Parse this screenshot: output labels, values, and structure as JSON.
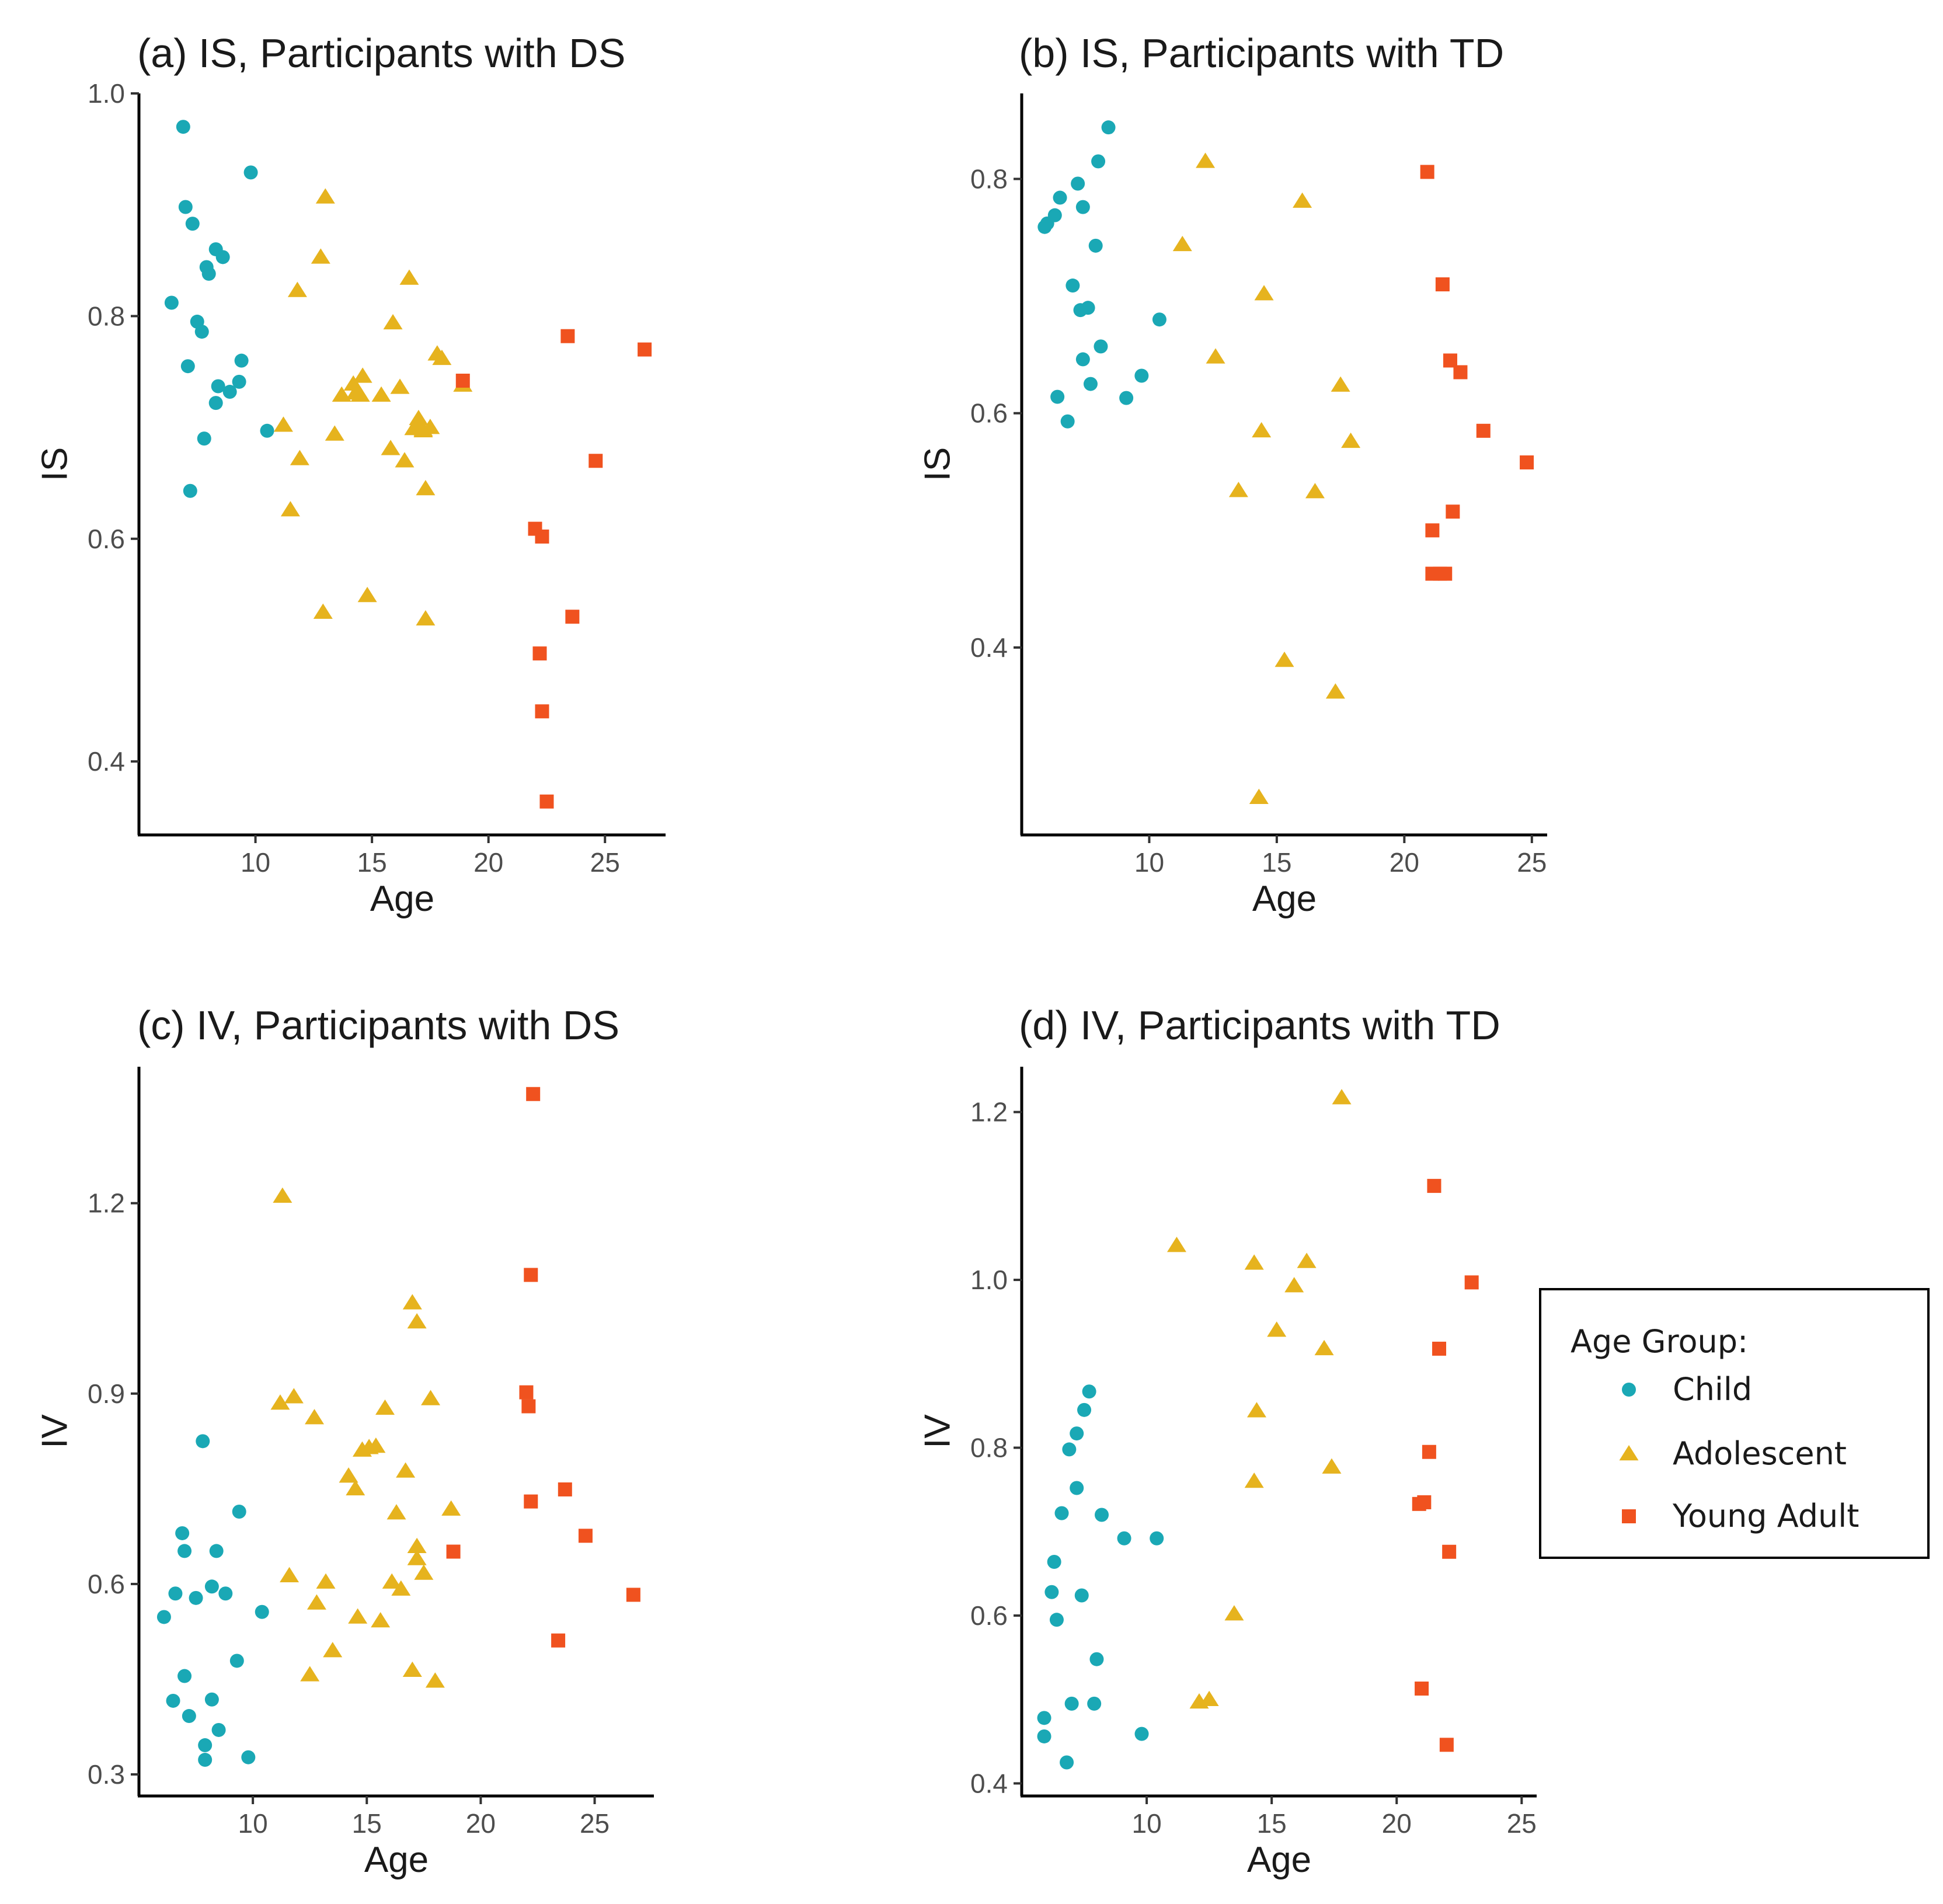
{
  "colors": {
    "Child": "#1AA8B5",
    "Adolescent": "#E6B31E",
    "Young Adult": "#F0521F"
  },
  "legend": {
    "title": "Age Group:",
    "items": [
      {
        "label": "Child",
        "shape": "circle"
      },
      {
        "label": "Adolescent",
        "shape": "triangle"
      },
      {
        "label": "Young Adult",
        "shape": "square"
      }
    ]
  },
  "chart_data": [
    {
      "type": "scatter",
      "title": "(a) IS, Participants with DS",
      "xlabel": "Age",
      "ylabel": "IS",
      "xlim": [
        5.0,
        27.6
      ],
      "ylim": [
        0.334,
        1.0
      ],
      "xticks": [
        10,
        15,
        20,
        25
      ],
      "yticks": [
        0.4,
        0.6,
        0.8,
        1.0
      ],
      "ytick_labels": [
        "0.4",
        "0.6",
        "0.8",
        "1.0"
      ],
      "series": [
        {
          "name": "Child",
          "points": [
            [
              6.4,
              0.812
            ],
            [
              6.9,
              0.97
            ],
            [
              7.0,
              0.898
            ],
            [
              7.1,
              0.755
            ],
            [
              7.3,
              0.883
            ],
            [
              7.2,
              0.643
            ],
            [
              7.5,
              0.795
            ],
            [
              7.7,
              0.786
            ],
            [
              7.8,
              0.69
            ],
            [
              7.9,
              0.844
            ],
            [
              8.0,
              0.838
            ],
            [
              8.3,
              0.86
            ],
            [
              8.3,
              0.722
            ],
            [
              8.4,
              0.737
            ],
            [
              8.6,
              0.853
            ],
            [
              8.9,
              0.732
            ],
            [
              9.3,
              0.741
            ],
            [
              9.4,
              0.76
            ],
            [
              9.8,
              0.929
            ],
            [
              10.5,
              0.697
            ]
          ]
        },
        {
          "name": "Adolescent",
          "points": [
            [
              11.2,
              0.702
            ],
            [
              11.5,
              0.626
            ],
            [
              11.8,
              0.823
            ],
            [
              11.9,
              0.672
            ],
            [
              12.8,
              0.853
            ],
            [
              13.0,
              0.907
            ],
            [
              12.9,
              0.534
            ],
            [
              13.4,
              0.694
            ],
            [
              13.7,
              0.729
            ],
            [
              14.2,
              0.739
            ],
            [
              14.3,
              0.731
            ],
            [
              14.6,
              0.746
            ],
            [
              14.5,
              0.729
            ],
            [
              14.8,
              0.549
            ],
            [
              15.4,
              0.729
            ],
            [
              15.8,
              0.681
            ],
            [
              15.9,
              0.794
            ],
            [
              16.2,
              0.736
            ],
            [
              16.4,
              0.67
            ],
            [
              16.6,
              0.834
            ],
            [
              16.8,
              0.699
            ],
            [
              17.0,
              0.708
            ],
            [
              17.1,
              0.7
            ],
            [
              17.2,
              0.698
            ],
            [
              17.2,
              0.697
            ],
            [
              17.3,
              0.528
            ],
            [
              17.3,
              0.645
            ],
            [
              17.5,
              0.7
            ],
            [
              17.8,
              0.766
            ],
            [
              18.0,
              0.762
            ],
            [
              18.9,
              0.738
            ]
          ]
        },
        {
          "name": "Young Adult",
          "points": [
            [
              18.9,
              0.742
            ],
            [
              22.0,
              0.609
            ],
            [
              22.2,
              0.497
            ],
            [
              22.3,
              0.445
            ],
            [
              22.3,
              0.602
            ],
            [
              22.5,
              0.364
            ],
            [
              23.4,
              0.782
            ],
            [
              23.6,
              0.53
            ],
            [
              24.6,
              0.67
            ],
            [
              26.7,
              0.77
            ]
          ]
        }
      ]
    },
    {
      "type": "scatter",
      "title": "(b) IS, Participants with TD",
      "xlabel": "Age",
      "ylabel": "IS",
      "xlim": [
        5.0,
        25.6
      ],
      "ylim": [
        0.24,
        0.873
      ],
      "xticks": [
        10,
        15,
        20,
        25
      ],
      "yticks": [
        0.4,
        0.6,
        0.8
      ],
      "ytick_labels": [
        "0.4",
        "0.6",
        "0.8"
      ],
      "series": [
        {
          "name": "Child",
          "points": [
            [
              5.9,
              0.759
            ],
            [
              6.0,
              0.762
            ],
            [
              6.3,
              0.769
            ],
            [
              6.4,
              0.614
            ],
            [
              6.5,
              0.784
            ],
            [
              6.8,
              0.593
            ],
            [
              7.0,
              0.709
            ],
            [
              7.2,
              0.796
            ],
            [
              7.3,
              0.688
            ],
            [
              7.4,
              0.776
            ],
            [
              7.4,
              0.646
            ],
            [
              7.6,
              0.69
            ],
            [
              7.7,
              0.625
            ],
            [
              7.9,
              0.743
            ],
            [
              8.0,
              0.815
            ],
            [
              8.1,
              0.657
            ],
            [
              8.4,
              0.844
            ],
            [
              9.1,
              0.613
            ],
            [
              9.7,
              0.632
            ],
            [
              10.4,
              0.68
            ]
          ]
        },
        {
          "name": "Adolescent",
          "points": [
            [
              11.3,
              0.744
            ],
            [
              12.2,
              0.815
            ],
            [
              12.6,
              0.648
            ],
            [
              13.5,
              0.534
            ],
            [
              14.3,
              0.272
            ],
            [
              14.4,
              0.585
            ],
            [
              14.5,
              0.702
            ],
            [
              15.3,
              0.389
            ],
            [
              16.0,
              0.781
            ],
            [
              16.5,
              0.533
            ],
            [
              17.3,
              0.362
            ],
            [
              17.5,
              0.624
            ],
            [
              17.9,
              0.576
            ]
          ]
        },
        {
          "name": "Young Adult",
          "points": [
            [
              20.9,
              0.806
            ],
            [
              21.1,
              0.5
            ],
            [
              21.1,
              0.463
            ],
            [
              21.4,
              0.463
            ],
            [
              21.5,
              0.71
            ],
            [
              21.6,
              0.463
            ],
            [
              21.8,
              0.645
            ],
            [
              21.9,
              0.516
            ],
            [
              22.2,
              0.635
            ],
            [
              23.1,
              0.585
            ],
            [
              24.8,
              0.558
            ]
          ]
        }
      ]
    },
    {
      "type": "scatter",
      "title": "(c) IV, Participants with DS",
      "xlabel": "Age",
      "ylabel": "IV",
      "xlim": [
        5.0,
        27.6
      ],
      "ylim": [
        0.266,
        1.415
      ],
      "xticks": [
        10,
        15,
        20,
        25
      ],
      "yticks": [
        0.3,
        0.6,
        0.9,
        1.2
      ],
      "ytick_labels": [
        "0.3",
        "0.6",
        "0.9",
        "1.2"
      ],
      "series": [
        {
          "name": "Child",
          "points": [
            [
              6.1,
              0.548
            ],
            [
              6.5,
              0.416
            ],
            [
              6.6,
              0.585
            ],
            [
              6.9,
              0.68
            ],
            [
              7.0,
              0.455
            ],
            [
              7.0,
              0.652
            ],
            [
              7.2,
              0.392
            ],
            [
              7.5,
              0.578
            ],
            [
              7.8,
              0.825
            ],
            [
              7.9,
              0.323
            ],
            [
              7.9,
              0.346
            ],
            [
              8.2,
              0.418
            ],
            [
              8.2,
              0.596
            ],
            [
              8.4,
              0.652
            ],
            [
              8.5,
              0.37
            ],
            [
              8.8,
              0.585
            ],
            [
              9.3,
              0.479
            ],
            [
              9.4,
              0.714
            ],
            [
              9.8,
              0.327
            ],
            [
              10.4,
              0.556
            ]
          ]
        },
        {
          "name": "Adolescent",
          "points": [
            [
              11.2,
              0.885
            ],
            [
              11.3,
              1.211
            ],
            [
              11.6,
              0.613
            ],
            [
              11.8,
              0.895
            ],
            [
              12.5,
              0.457
            ],
            [
              12.7,
              0.862
            ],
            [
              12.8,
              0.57
            ],
            [
              13.2,
              0.603
            ],
            [
              13.5,
              0.495
            ],
            [
              14.2,
              0.77
            ],
            [
              14.5,
              0.75
            ],
            [
              14.6,
              0.548
            ],
            [
              14.8,
              0.811
            ],
            [
              15.1,
              0.815
            ],
            [
              15.4,
              0.817
            ],
            [
              15.6,
              0.542
            ],
            [
              15.8,
              0.877
            ],
            [
              16.1,
              0.603
            ],
            [
              16.3,
              0.712
            ],
            [
              16.5,
              0.592
            ],
            [
              16.7,
              0.778
            ],
            [
              17.0,
              0.464
            ],
            [
              17.0,
              1.043
            ],
            [
              17.2,
              1.013
            ],
            [
              17.2,
              0.64
            ],
            [
              17.2,
              0.659
            ],
            [
              17.5,
              0.617
            ],
            [
              17.8,
              0.892
            ],
            [
              18.0,
              0.447
            ],
            [
              18.7,
              0.718
            ]
          ]
        },
        {
          "name": "Young Adult",
          "points": [
            [
              18.8,
              0.651
            ],
            [
              22.0,
              0.902
            ],
            [
              22.1,
              0.88
            ],
            [
              22.2,
              0.73
            ],
            [
              22.2,
              1.087
            ],
            [
              22.3,
              1.372
            ],
            [
              23.4,
              0.511
            ],
            [
              23.7,
              0.749
            ],
            [
              24.6,
              0.676
            ],
            [
              26.7,
              0.583
            ]
          ]
        }
      ]
    },
    {
      "type": "scatter",
      "title": "(d) IV, Participants with TD",
      "xlabel": "Age",
      "ylabel": "IV",
      "xlim": [
        5.0,
        25.6
      ],
      "ylim": [
        0.385,
        1.254
      ],
      "xticks": [
        10,
        15,
        20,
        25
      ],
      "yticks": [
        0.4,
        0.6,
        0.8,
        1.0,
        1.2
      ],
      "ytick_labels": [
        "0.4",
        "0.6",
        "0.8",
        "1.0",
        "1.2"
      ],
      "series": [
        {
          "name": "Child",
          "points": [
            [
              5.9,
              0.478
            ],
            [
              5.9,
              0.456
            ],
            [
              6.2,
              0.628
            ],
            [
              6.3,
              0.664
            ],
            [
              6.4,
              0.595
            ],
            [
              6.6,
              0.722
            ],
            [
              6.8,
              0.425
            ],
            [
              6.9,
              0.798
            ],
            [
              7.0,
              0.495
            ],
            [
              7.2,
              0.752
            ],
            [
              7.2,
              0.817
            ],
            [
              7.4,
              0.624
            ],
            [
              7.5,
              0.845
            ],
            [
              7.7,
              0.867
            ],
            [
              7.9,
              0.495
            ],
            [
              8.0,
              0.548
            ],
            [
              8.2,
              0.72
            ],
            [
              9.1,
              0.692
            ],
            [
              9.8,
              0.459
            ],
            [
              10.4,
              0.692
            ]
          ]
        },
        {
          "name": "Adolescent",
          "points": [
            [
              11.2,
              1.041
            ],
            [
              12.1,
              0.497
            ],
            [
              12.5,
              0.5
            ],
            [
              13.5,
              0.602
            ],
            [
              14.3,
              0.76
            ],
            [
              14.4,
              0.844
            ],
            [
              14.3,
              1.02
            ],
            [
              15.2,
              0.94
            ],
            [
              15.9,
              0.993
            ],
            [
              16.4,
              1.022
            ],
            [
              17.1,
              0.918
            ],
            [
              17.4,
              0.777
            ],
            [
              17.8,
              1.217
            ]
          ]
        },
        {
          "name": "Young Adult",
          "points": [
            [
              20.9,
              0.733
            ],
            [
              21.0,
              0.513
            ],
            [
              21.1,
              0.735
            ],
            [
              21.3,
              0.795
            ],
            [
              21.5,
              1.112
            ],
            [
              21.7,
              0.918
            ],
            [
              22.0,
              0.446
            ],
            [
              22.1,
              0.676
            ],
            [
              23.0,
              0.997
            ]
          ]
        }
      ]
    }
  ]
}
